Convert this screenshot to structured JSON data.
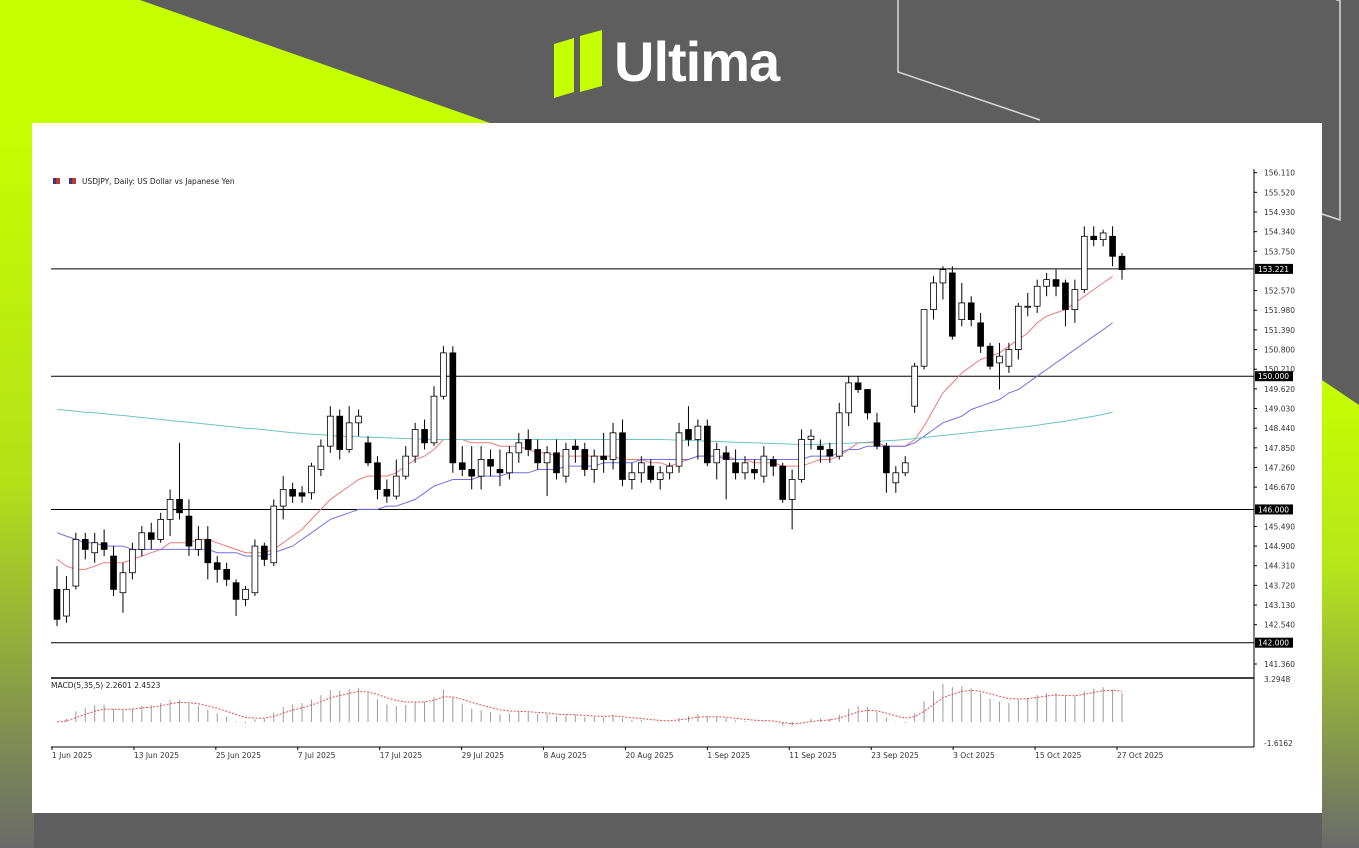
{
  "brand": {
    "name": "Ultima",
    "accent_color": "#c6ff00",
    "background_color": "#5e5e5e"
  },
  "chart_data": {
    "type": "candlestick",
    "title": "USDJPY, Daily: US Dollar vs Japanese Yen",
    "x_labels": [
      "1 Jun 2025",
      "13 Jun 2025",
      "25 Jun 2025",
      "7 Jul 2025",
      "17 Jul 2025",
      "29 Jul 2025",
      "8 Aug 2025",
      "20 Aug 2025",
      "1 Sep 2025",
      "11 Sep 2025",
      "23 Sep 2025",
      "3 Oct 2025",
      "15 Oct 2025",
      "27 Oct 2025"
    ],
    "y_ticks": [
      "156.110",
      "155.520",
      "154.930",
      "154.340",
      "153.750",
      "152.570",
      "151.980",
      "151.390",
      "150.800",
      "150.210",
      "149.620",
      "149.030",
      "148.440",
      "147.850",
      "147.260",
      "146.670",
      "145.490",
      "144.900",
      "144.310",
      "143.720",
      "143.130",
      "142.540",
      "141.360"
    ],
    "ylim": [
      141.0,
      156.1
    ],
    "horizontal_levels": [
      {
        "value": 153.221,
        "label": "153.221"
      },
      {
        "value": 150.0,
        "label": "150.000"
      },
      {
        "value": 146.0,
        "label": "146.000"
      },
      {
        "value": 142.0,
        "label": "142.000"
      }
    ],
    "candles": [
      {
        "o": 143.6,
        "h": 144.3,
        "l": 142.5,
        "c": 142.7
      },
      {
        "o": 142.8,
        "h": 144.0,
        "l": 142.6,
        "c": 143.6
      },
      {
        "o": 143.7,
        "h": 145.3,
        "l": 143.6,
        "c": 145.1
      },
      {
        "o": 145.1,
        "h": 145.3,
        "l": 144.5,
        "c": 144.8
      },
      {
        "o": 144.7,
        "h": 145.3,
        "l": 144.4,
        "c": 145.0
      },
      {
        "o": 145.0,
        "h": 145.4,
        "l": 144.6,
        "c": 144.8
      },
      {
        "o": 144.6,
        "h": 144.9,
        "l": 143.4,
        "c": 143.6
      },
      {
        "o": 143.5,
        "h": 144.4,
        "l": 142.9,
        "c": 144.1
      },
      {
        "o": 144.1,
        "h": 145.0,
        "l": 143.9,
        "c": 144.8
      },
      {
        "o": 144.8,
        "h": 145.5,
        "l": 144.6,
        "c": 145.3
      },
      {
        "o": 145.3,
        "h": 145.6,
        "l": 144.8,
        "c": 145.1
      },
      {
        "o": 145.1,
        "h": 145.9,
        "l": 145.0,
        "c": 145.7
      },
      {
        "o": 145.7,
        "h": 146.6,
        "l": 145.2,
        "c": 146.3
      },
      {
        "o": 146.3,
        "h": 148.0,
        "l": 145.7,
        "c": 145.9
      },
      {
        "o": 145.8,
        "h": 146.3,
        "l": 144.6,
        "c": 144.9
      },
      {
        "o": 144.8,
        "h": 145.5,
        "l": 144.6,
        "c": 145.1
      },
      {
        "o": 145.1,
        "h": 145.5,
        "l": 143.9,
        "c": 144.4
      },
      {
        "o": 144.4,
        "h": 144.6,
        "l": 143.8,
        "c": 144.2
      },
      {
        "o": 144.2,
        "h": 144.4,
        "l": 143.7,
        "c": 143.9
      },
      {
        "o": 143.8,
        "h": 143.9,
        "l": 142.8,
        "c": 143.3
      },
      {
        "o": 143.3,
        "h": 143.7,
        "l": 143.1,
        "c": 143.6
      },
      {
        "o": 143.5,
        "h": 145.1,
        "l": 143.4,
        "c": 144.9
      },
      {
        "o": 144.9,
        "h": 145.0,
        "l": 144.3,
        "c": 144.5
      },
      {
        "o": 144.4,
        "h": 146.3,
        "l": 144.3,
        "c": 146.1
      },
      {
        "o": 146.1,
        "h": 147.0,
        "l": 145.7,
        "c": 146.6
      },
      {
        "o": 146.6,
        "h": 146.8,
        "l": 146.2,
        "c": 146.4
      },
      {
        "o": 146.5,
        "h": 146.7,
        "l": 146.2,
        "c": 146.4
      },
      {
        "o": 146.5,
        "h": 147.4,
        "l": 146.3,
        "c": 147.3
      },
      {
        "o": 147.2,
        "h": 148.1,
        "l": 147.0,
        "c": 147.9
      },
      {
        "o": 147.9,
        "h": 149.1,
        "l": 147.7,
        "c": 148.8
      },
      {
        "o": 148.8,
        "h": 149.0,
        "l": 147.5,
        "c": 147.8
      },
      {
        "o": 147.8,
        "h": 149.1,
        "l": 147.7,
        "c": 148.6
      },
      {
        "o": 148.6,
        "h": 149.0,
        "l": 148.2,
        "c": 148.8
      },
      {
        "o": 148.0,
        "h": 148.2,
        "l": 147.3,
        "c": 147.4
      },
      {
        "o": 147.4,
        "h": 147.6,
        "l": 146.3,
        "c": 146.6
      },
      {
        "o": 146.6,
        "h": 146.9,
        "l": 146.2,
        "c": 146.4
      },
      {
        "o": 146.4,
        "h": 147.5,
        "l": 146.3,
        "c": 147.0
      },
      {
        "o": 147.0,
        "h": 147.9,
        "l": 146.9,
        "c": 147.6
      },
      {
        "o": 147.6,
        "h": 148.6,
        "l": 147.4,
        "c": 148.4
      },
      {
        "o": 148.4,
        "h": 148.7,
        "l": 147.8,
        "c": 148.0
      },
      {
        "o": 148.0,
        "h": 149.7,
        "l": 147.9,
        "c": 149.4
      },
      {
        "o": 149.4,
        "h": 150.9,
        "l": 149.3,
        "c": 150.7
      },
      {
        "o": 150.7,
        "h": 150.9,
        "l": 147.1,
        "c": 147.4
      },
      {
        "o": 147.4,
        "h": 147.9,
        "l": 147.0,
        "c": 147.2
      },
      {
        "o": 147.2,
        "h": 147.9,
        "l": 146.6,
        "c": 147.0
      },
      {
        "o": 147.0,
        "h": 147.9,
        "l": 146.6,
        "c": 147.5
      },
      {
        "o": 147.5,
        "h": 147.8,
        "l": 147.0,
        "c": 147.3
      },
      {
        "o": 147.2,
        "h": 147.8,
        "l": 146.7,
        "c": 147.1
      },
      {
        "o": 147.1,
        "h": 147.9,
        "l": 146.9,
        "c": 147.7
      },
      {
        "o": 147.7,
        "h": 148.3,
        "l": 147.4,
        "c": 148.0
      },
      {
        "o": 148.1,
        "h": 148.4,
        "l": 147.6,
        "c": 147.8
      },
      {
        "o": 147.8,
        "h": 148.1,
        "l": 147.2,
        "c": 147.4
      },
      {
        "o": 147.4,
        "h": 147.9,
        "l": 146.4,
        "c": 147.7
      },
      {
        "o": 147.7,
        "h": 148.1,
        "l": 146.9,
        "c": 147.1
      },
      {
        "o": 147.0,
        "h": 148.0,
        "l": 146.8,
        "c": 147.8
      },
      {
        "o": 147.9,
        "h": 148.1,
        "l": 147.4,
        "c": 147.8
      },
      {
        "o": 147.8,
        "h": 148.0,
        "l": 147.0,
        "c": 147.2
      },
      {
        "o": 147.2,
        "h": 147.8,
        "l": 146.8,
        "c": 147.6
      },
      {
        "o": 147.6,
        "h": 148.3,
        "l": 147.1,
        "c": 147.5
      },
      {
        "o": 147.5,
        "h": 148.6,
        "l": 147.2,
        "c": 148.3
      },
      {
        "o": 148.3,
        "h": 148.7,
        "l": 146.7,
        "c": 146.9
      },
      {
        "o": 146.9,
        "h": 147.4,
        "l": 146.6,
        "c": 147.1
      },
      {
        "o": 147.1,
        "h": 147.6,
        "l": 146.8,
        "c": 147.4
      },
      {
        "o": 147.3,
        "h": 147.5,
        "l": 146.8,
        "c": 146.9
      },
      {
        "o": 146.9,
        "h": 147.3,
        "l": 146.6,
        "c": 147.1
      },
      {
        "o": 147.1,
        "h": 147.4,
        "l": 146.9,
        "c": 147.3
      },
      {
        "o": 147.3,
        "h": 148.6,
        "l": 147.1,
        "c": 148.3
      },
      {
        "o": 148.4,
        "h": 149.1,
        "l": 147.9,
        "c": 148.1
      },
      {
        "o": 148.1,
        "h": 148.7,
        "l": 147.5,
        "c": 148.5
      },
      {
        "o": 148.5,
        "h": 148.7,
        "l": 147.3,
        "c": 147.4
      },
      {
        "o": 147.4,
        "h": 148.0,
        "l": 146.9,
        "c": 147.8
      },
      {
        "o": 147.7,
        "h": 147.9,
        "l": 146.3,
        "c": 147.5
      },
      {
        "o": 147.4,
        "h": 147.8,
        "l": 146.9,
        "c": 147.1
      },
      {
        "o": 147.1,
        "h": 147.6,
        "l": 146.9,
        "c": 147.4
      },
      {
        "o": 147.2,
        "h": 147.5,
        "l": 146.9,
        "c": 147.1
      },
      {
        "o": 147.0,
        "h": 147.9,
        "l": 146.8,
        "c": 147.6
      },
      {
        "o": 147.5,
        "h": 147.6,
        "l": 147.0,
        "c": 147.3
      },
      {
        "o": 147.3,
        "h": 147.4,
        "l": 146.2,
        "c": 146.3
      },
      {
        "o": 146.3,
        "h": 147.2,
        "l": 145.4,
        "c": 146.9
      },
      {
        "o": 146.9,
        "h": 148.4,
        "l": 146.8,
        "c": 148.1
      },
      {
        "o": 148.1,
        "h": 148.4,
        "l": 147.8,
        "c": 148.2
      },
      {
        "o": 147.9,
        "h": 148.1,
        "l": 147.4,
        "c": 147.8
      },
      {
        "o": 147.8,
        "h": 148.0,
        "l": 147.4,
        "c": 147.6
      },
      {
        "o": 147.6,
        "h": 149.2,
        "l": 147.5,
        "c": 148.9
      },
      {
        "o": 148.9,
        "h": 150.0,
        "l": 148.5,
        "c": 149.8
      },
      {
        "o": 149.8,
        "h": 150.0,
        "l": 149.5,
        "c": 149.6
      },
      {
        "o": 149.6,
        "h": 149.6,
        "l": 148.7,
        "c": 148.9
      },
      {
        "o": 148.6,
        "h": 148.9,
        "l": 147.8,
        "c": 147.9
      },
      {
        "o": 147.9,
        "h": 148.0,
        "l": 146.5,
        "c": 147.1
      },
      {
        "o": 146.8,
        "h": 147.3,
        "l": 146.5,
        "c": 147.1
      },
      {
        "o": 147.1,
        "h": 147.6,
        "l": 147.0,
        "c": 147.4
      },
      {
        "o": 149.1,
        "h": 150.4,
        "l": 148.9,
        "c": 150.3
      },
      {
        "o": 150.3,
        "h": 152.0,
        "l": 150.2,
        "c": 152.0
      },
      {
        "o": 152.0,
        "h": 153.0,
        "l": 151.7,
        "c": 152.8
      },
      {
        "o": 152.8,
        "h": 153.3,
        "l": 152.3,
        "c": 153.2
      },
      {
        "o": 153.1,
        "h": 153.3,
        "l": 151.1,
        "c": 151.2
      },
      {
        "o": 151.7,
        "h": 152.8,
        "l": 151.5,
        "c": 152.2
      },
      {
        "o": 152.2,
        "h": 152.4,
        "l": 151.5,
        "c": 151.7
      },
      {
        "o": 151.6,
        "h": 151.9,
        "l": 150.7,
        "c": 150.9
      },
      {
        "o": 150.9,
        "h": 151.0,
        "l": 150.2,
        "c": 150.3
      },
      {
        "o": 150.4,
        "h": 151.0,
        "l": 149.6,
        "c": 150.6
      },
      {
        "o": 150.3,
        "h": 151.0,
        "l": 150.1,
        "c": 150.8
      },
      {
        "o": 150.8,
        "h": 152.2,
        "l": 150.5,
        "c": 152.1
      },
      {
        "o": 152.1,
        "h": 152.5,
        "l": 151.8,
        "c": 152.1
      },
      {
        "o": 152.1,
        "h": 152.9,
        "l": 151.9,
        "c": 152.7
      },
      {
        "o": 152.7,
        "h": 153.1,
        "l": 152.4,
        "c": 152.9
      },
      {
        "o": 152.9,
        "h": 153.2,
        "l": 152.4,
        "c": 152.7
      },
      {
        "o": 152.8,
        "h": 152.9,
        "l": 151.5,
        "c": 152.0
      },
      {
        "o": 152.0,
        "h": 152.9,
        "l": 151.6,
        "c": 152.6
      },
      {
        "o": 152.6,
        "h": 154.5,
        "l": 152.5,
        "c": 154.2
      },
      {
        "o": 154.2,
        "h": 154.5,
        "l": 153.9,
        "c": 154.1
      },
      {
        "o": 154.1,
        "h": 154.4,
        "l": 153.9,
        "c": 154.3
      },
      {
        "o": 154.2,
        "h": 154.5,
        "l": 153.3,
        "c": 153.6
      },
      {
        "o": 153.6,
        "h": 153.7,
        "l": 152.9,
        "c": 153.2
      }
    ],
    "moving_averages": [
      {
        "name": "MA fast",
        "color": "#ef7a7a",
        "values": [
          144.5,
          144.3,
          144.2,
          144.2,
          144.3,
          144.4,
          144.4,
          144.4,
          144.5,
          144.6,
          144.7,
          144.8,
          145.0,
          145.0,
          145.0,
          145.1,
          145.1,
          145.0,
          144.9,
          144.8,
          144.7,
          144.7,
          144.7,
          144.8,
          145.0,
          145.2,
          145.4,
          145.7,
          146.0,
          146.3,
          146.5,
          146.7,
          146.9,
          147.0,
          147.0,
          147.0,
          147.1,
          147.3,
          147.5,
          147.6,
          147.8,
          148.1,
          148.1,
          148.1,
          148.0,
          148.0,
          148.0,
          147.9,
          147.9,
          147.9,
          147.8,
          147.7,
          147.7,
          147.6,
          147.6,
          147.6,
          147.6,
          147.6,
          147.6,
          147.6,
          147.5,
          147.5,
          147.5,
          147.4,
          147.4,
          147.3,
          147.4,
          147.5,
          147.6,
          147.6,
          147.6,
          147.6,
          147.5,
          147.5,
          147.4,
          147.4,
          147.4,
          147.3,
          147.3,
          147.3,
          147.4,
          147.5,
          147.5,
          147.6,
          147.8,
          148.0,
          148.0,
          148.0,
          147.9,
          147.9,
          147.9,
          148.1,
          148.5,
          149.0,
          149.5,
          149.8,
          150.1,
          150.3,
          150.5,
          150.6,
          150.7,
          150.9,
          151.1,
          151.3,
          151.6,
          151.8,
          151.9,
          152.0,
          152.2,
          152.4,
          152.6,
          152.8,
          153.0
        ]
      },
      {
        "name": "MA medium",
        "color": "#6f6fe8",
        "values": [
          145.3,
          145.2,
          145.1,
          145.0,
          145.0,
          144.9,
          144.9,
          144.9,
          144.8,
          144.8,
          144.8,
          144.8,
          144.8,
          144.8,
          144.8,
          144.8,
          144.8,
          144.7,
          144.7,
          144.7,
          144.6,
          144.6,
          144.6,
          144.7,
          144.8,
          144.9,
          145.1,
          145.3,
          145.5,
          145.7,
          145.8,
          145.9,
          146.0,
          146.0,
          146.0,
          146.1,
          146.1,
          146.2,
          146.3,
          146.5,
          146.7,
          146.8,
          146.9,
          146.9,
          146.9,
          147.0,
          147.0,
          147.0,
          147.1,
          147.1,
          147.1,
          147.2,
          147.2,
          147.2,
          147.3,
          147.3,
          147.3,
          147.3,
          147.4,
          147.4,
          147.4,
          147.4,
          147.5,
          147.5,
          147.5,
          147.5,
          147.5,
          147.5,
          147.6,
          147.6,
          147.6,
          147.5,
          147.5,
          147.5,
          147.5,
          147.5,
          147.5,
          147.5,
          147.5,
          147.5,
          147.6,
          147.6,
          147.6,
          147.7,
          147.8,
          147.8,
          147.9,
          147.9,
          147.9,
          147.9,
          147.9,
          148.0,
          148.2,
          148.4,
          148.6,
          148.7,
          148.8,
          149.0,
          149.1,
          149.2,
          149.3,
          149.5,
          149.6,
          149.8,
          150.0,
          150.2,
          150.4,
          150.6,
          150.8,
          151.0,
          151.2,
          151.4,
          151.6
        ]
      },
      {
        "name": "MA slow",
        "color": "#6fc4c4",
        "values": [
          149.0,
          148.98,
          148.95,
          148.92,
          148.9,
          148.87,
          148.84,
          148.82,
          148.79,
          148.76,
          148.73,
          148.7,
          148.67,
          148.64,
          148.62,
          148.59,
          148.56,
          148.53,
          148.5,
          148.47,
          148.44,
          148.42,
          148.39,
          148.36,
          148.33,
          148.3,
          148.28,
          148.26,
          148.24,
          148.22,
          148.2,
          148.19,
          148.18,
          148.17,
          148.16,
          148.15,
          148.14,
          148.13,
          148.12,
          148.11,
          148.1,
          148.1,
          148.1,
          148.1,
          148.1,
          148.1,
          148.1,
          148.1,
          148.1,
          148.1,
          148.1,
          148.1,
          148.1,
          148.1,
          148.1,
          148.1,
          148.1,
          148.1,
          148.1,
          148.1,
          148.1,
          148.1,
          148.1,
          148.1,
          148.1,
          148.09,
          148.08,
          148.07,
          148.06,
          148.05,
          148.04,
          148.03,
          148.02,
          148.01,
          148.0,
          147.99,
          147.98,
          147.97,
          147.96,
          147.95,
          147.95,
          147.96,
          147.97,
          147.98,
          147.99,
          148.0,
          148.02,
          148.04,
          148.06,
          148.08,
          148.1,
          148.13,
          148.16,
          148.19,
          148.22,
          148.25,
          148.28,
          148.31,
          148.34,
          148.37,
          148.4,
          148.43,
          148.46,
          148.49,
          148.53,
          148.57,
          148.61,
          148.65,
          148.7,
          148.75,
          148.8,
          148.86,
          148.92
        ]
      }
    ],
    "macd": {
      "label": "MACD(5,35,5) 2.2601 2.4523",
      "y_ticks": [
        "3.2948",
        "-1.6162"
      ],
      "ylim": [
        -1.6162,
        3.2948
      ],
      "signal_color": "#e05050",
      "histogram_color": "#9a9a9a"
    }
  }
}
